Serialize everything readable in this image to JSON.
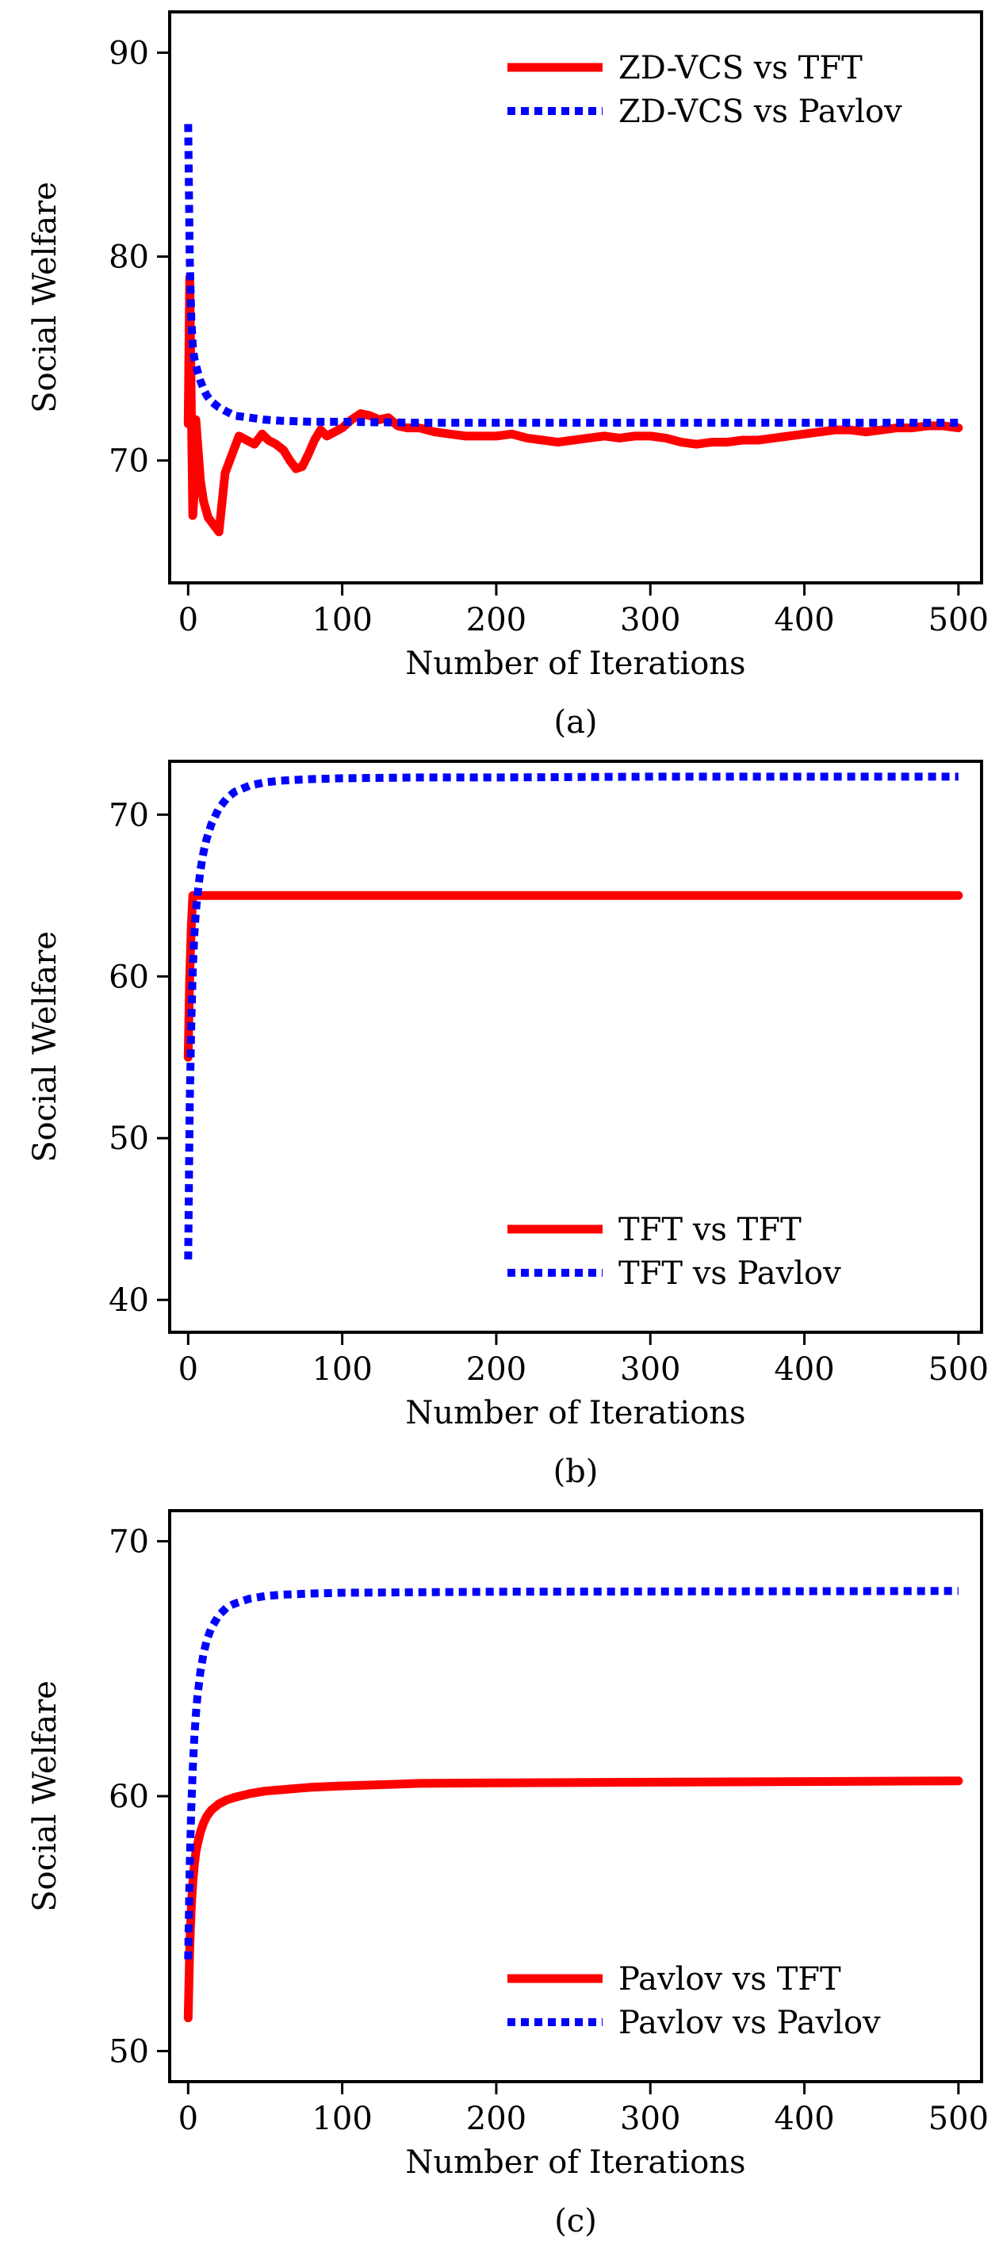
{
  "chart_data": [
    {
      "type": "line",
      "panel_caption": "(a)",
      "xlabel": "Number of Iterations",
      "ylabel": "Social Welfare",
      "xlim": [
        -12,
        515
      ],
      "ylim": [
        64,
        92
      ],
      "xticks": [
        0,
        100,
        200,
        300,
        400,
        500
      ],
      "yticks": [
        70,
        80,
        90
      ],
      "grid": false,
      "legend_position": "top-right",
      "series": [
        {
          "name": "ZD-VCS vs TFT",
          "color": "#ff0000",
          "style": "solid",
          "x": [
            0,
            1,
            2,
            3,
            4,
            5,
            6,
            8,
            10,
            13,
            16,
            20,
            24,
            28,
            33,
            38,
            43,
            48,
            52,
            57,
            62,
            66,
            70,
            74,
            78,
            82,
            86,
            90,
            95,
            100,
            106,
            112,
            118,
            124,
            130,
            136,
            142,
            150,
            160,
            170,
            180,
            190,
            200,
            210,
            220,
            230,
            240,
            250,
            260,
            270,
            280,
            290,
            300,
            310,
            320,
            330,
            340,
            350,
            360,
            370,
            380,
            390,
            400,
            410,
            420,
            430,
            440,
            450,
            460,
            470,
            480,
            490,
            500
          ],
          "y": [
            71.8,
            79.0,
            73.0,
            67.3,
            68.5,
            72.0,
            71.0,
            69.0,
            68.0,
            67.2,
            66.9,
            66.5,
            69.4,
            70.2,
            71.2,
            71.0,
            70.8,
            71.3,
            71.0,
            70.8,
            70.5,
            70.0,
            69.6,
            69.7,
            70.3,
            71.0,
            71.5,
            71.2,
            71.4,
            71.6,
            72.0,
            72.3,
            72.2,
            72.0,
            72.1,
            71.7,
            71.6,
            71.6,
            71.4,
            71.3,
            71.2,
            71.2,
            71.2,
            71.3,
            71.1,
            71.0,
            70.9,
            71.0,
            71.1,
            71.2,
            71.1,
            71.2,
            71.2,
            71.1,
            70.9,
            70.8,
            70.9,
            70.9,
            71.0,
            71.0,
            71.1,
            71.2,
            71.3,
            71.4,
            71.5,
            71.5,
            71.4,
            71.5,
            71.6,
            71.6,
            71.7,
            71.7,
            71.6
          ]
        },
        {
          "name": "ZD-VCS vs Pavlov",
          "color": "#0000ff",
          "style": "dotted",
          "x": [
            0,
            1,
            2,
            3,
            4,
            5,
            6,
            8,
            10,
            12,
            15,
            20,
            25,
            30,
            40,
            50,
            60,
            80,
            100,
            150,
            200,
            300,
            400,
            500
          ],
          "y": [
            86.5,
            80.0,
            77.0,
            75.6,
            75.0,
            74.7,
            74.4,
            73.9,
            73.5,
            73.2,
            72.9,
            72.6,
            72.4,
            72.2,
            72.1,
            72.0,
            71.95,
            71.9,
            71.9,
            71.85,
            71.85,
            71.85,
            71.85,
            71.85
          ]
        }
      ]
    },
    {
      "type": "line",
      "panel_caption": "(b)",
      "xlabel": "Number of Iterations",
      "ylabel": "Social Welfare",
      "xlim": [
        -12,
        515
      ],
      "ylim": [
        38,
        73.3
      ],
      "xticks": [
        0,
        100,
        200,
        300,
        400,
        500
      ],
      "yticks": [
        40,
        50,
        60,
        70
      ],
      "grid": false,
      "legend_position": "bottom-right",
      "series": [
        {
          "name": "TFT vs TFT",
          "color": "#ff0000",
          "style": "solid",
          "x": [
            0,
            1,
            2,
            3,
            500
          ],
          "y": [
            55.0,
            60.0,
            63.0,
            65.0,
            65.0
          ]
        },
        {
          "name": "TFT vs Pavlov",
          "color": "#0000ff",
          "style": "dotted",
          "x": [
            0,
            1,
            2,
            3,
            4,
            5,
            6,
            8,
            10,
            12,
            15,
            20,
            25,
            30,
            40,
            50,
            60,
            80,
            100,
            150,
            200,
            300,
            400,
            500
          ],
          "y": [
            42.5,
            52.0,
            57.0,
            60.5,
            62.6,
            64.0,
            65.0,
            66.6,
            67.7,
            68.5,
            69.4,
            70.4,
            71.0,
            71.4,
            71.8,
            72.0,
            72.1,
            72.2,
            72.25,
            72.3,
            72.3,
            72.35,
            72.35,
            72.35
          ]
        }
      ]
    },
    {
      "type": "line",
      "panel_caption": "(c)",
      "xlabel": "Number of Iterations",
      "ylabel": "Social Welfare",
      "xlim": [
        -12,
        515
      ],
      "ylim": [
        48.8,
        71.2
      ],
      "xticks": [
        0,
        100,
        200,
        300,
        400,
        500
      ],
      "yticks": [
        50,
        60,
        70
      ],
      "grid": false,
      "legend_position": "bottom-right",
      "series": [
        {
          "name": "Pavlov vs TFT",
          "color": "#ff0000",
          "style": "solid",
          "x": [
            0,
            1,
            2,
            3,
            4,
            5,
            6,
            8,
            10,
            12,
            15,
            20,
            25,
            30,
            40,
            50,
            60,
            80,
            100,
            150,
            200,
            300,
            400,
            500
          ],
          "y": [
            51.3,
            54.0,
            55.6,
            56.6,
            57.3,
            57.8,
            58.1,
            58.6,
            58.95,
            59.2,
            59.45,
            59.7,
            59.85,
            59.95,
            60.1,
            60.2,
            60.25,
            60.35,
            60.4,
            60.5,
            60.52,
            60.55,
            60.57,
            60.6
          ]
        },
        {
          "name": "Pavlov vs Pavlov",
          "color": "#0000ff",
          "style": "dotted",
          "x": [
            0,
            1,
            2,
            3,
            4,
            5,
            6,
            8,
            10,
            12,
            15,
            20,
            25,
            30,
            40,
            50,
            60,
            80,
            100,
            150,
            200,
            300,
            400,
            500
          ],
          "y": [
            53.6,
            57.2,
            59.5,
            61.1,
            62.3,
            63.2,
            63.9,
            64.9,
            65.6,
            66.1,
            66.6,
            67.1,
            67.4,
            67.55,
            67.75,
            67.85,
            67.9,
            67.95,
            67.98,
            68.0,
            68.02,
            68.03,
            68.04,
            68.05
          ]
        }
      ]
    }
  ]
}
